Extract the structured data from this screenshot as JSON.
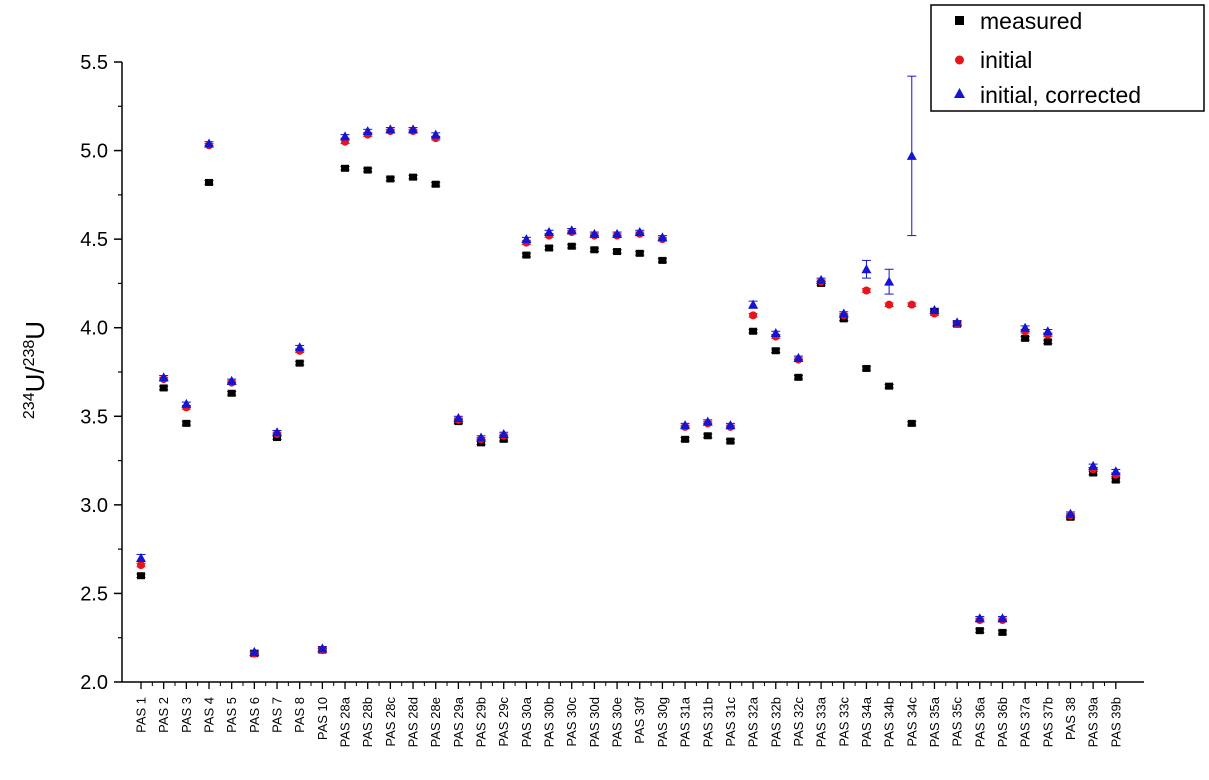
{
  "chart_data": {
    "type": "scatter",
    "ylabel": {
      "sup1": "234",
      "base1": "U/",
      "sup2": "238",
      "base2": "U"
    },
    "ylim": [
      2.0,
      5.5
    ],
    "yticks": [
      "2.0",
      "2.5",
      "3.0",
      "3.5",
      "4.0",
      "4.5",
      "5.0",
      "5.5"
    ],
    "legend_position": "top-right",
    "categories": [
      "PAS 1",
      "PAS 2",
      "PAS 3",
      "PAS 4",
      "PAS 5",
      "PAS 6",
      "PAS 7",
      "PAS 8",
      "PAS 10",
      "PAS 28a",
      "PAS 28b",
      "PAS 28c",
      "PAS 28d",
      "PAS 28e",
      "PAS 29a",
      "PAS 29b",
      "PAS 29c",
      "PAS 30a",
      "PAS 30b",
      "PAS 30c",
      "PAS 30d",
      "PAS 30e",
      "PAS 30f",
      "PAS 30g",
      "PAS 31a",
      "PAS 31b",
      "PAS 31c",
      "PAS 32a",
      "PAS 32b",
      "PAS 32c",
      "PAS 33a",
      "PAS 33c",
      "PAS 34a",
      "PAS 34b",
      "PAS 34c",
      "PAS 35a",
      "PAS 35c",
      "PAS 36a",
      "PAS 36b",
      "PAS 37a",
      "PAS 37b",
      "PAS 38",
      "PAS 39a",
      "PAS 39b"
    ],
    "series": [
      {
        "name": "measured",
        "marker": "square",
        "color": "#000000",
        "values": [
          2.6,
          3.66,
          3.46,
          4.82,
          3.63,
          2.16,
          3.38,
          3.8,
          2.18,
          4.9,
          4.89,
          4.84,
          4.85,
          4.81,
          3.47,
          3.35,
          3.37,
          4.41,
          4.45,
          4.46,
          4.44,
          4.43,
          4.42,
          4.38,
          3.37,
          3.39,
          3.36,
          3.98,
          3.87,
          3.72,
          4.25,
          4.05,
          3.77,
          3.67,
          3.46,
          4.09,
          4.02,
          2.29,
          2.28,
          3.94,
          3.92,
          2.93,
          3.18,
          3.14
        ],
        "errors": [
          0.01,
          0.01,
          0.01,
          0.01,
          0.01,
          0.01,
          0.01,
          0.01,
          0.01,
          0.01,
          0.01,
          0.01,
          0.01,
          0.01,
          0.01,
          0.01,
          0.01,
          0.01,
          0.01,
          0.01,
          0.01,
          0.01,
          0.01,
          0.01,
          0.01,
          0.01,
          0.01,
          0.01,
          0.01,
          0.01,
          0.01,
          0.01,
          0.01,
          0.01,
          0.01,
          0.01,
          0.01,
          0.01,
          0.01,
          0.01,
          0.01,
          0.01,
          0.01,
          0.01
        ]
      },
      {
        "name": "initial",
        "marker": "circle",
        "color": "#e8141c",
        "values": [
          2.66,
          3.71,
          3.55,
          5.03,
          3.69,
          2.16,
          3.4,
          3.87,
          2.18,
          5.05,
          5.09,
          5.11,
          5.11,
          5.07,
          3.48,
          3.37,
          3.39,
          4.48,
          4.52,
          4.54,
          4.52,
          4.52,
          4.53,
          4.5,
          3.44,
          3.46,
          3.44,
          4.07,
          3.95,
          3.82,
          4.26,
          4.07,
          4.21,
          4.13,
          4.13,
          4.08,
          4.02,
          2.35,
          2.35,
          3.98,
          3.96,
          2.94,
          3.2,
          3.17
        ],
        "errors": [
          0.01,
          0.01,
          0.01,
          0.01,
          0.01,
          0.01,
          0.01,
          0.01,
          0.01,
          0.01,
          0.01,
          0.01,
          0.01,
          0.01,
          0.01,
          0.01,
          0.01,
          0.01,
          0.01,
          0.01,
          0.01,
          0.01,
          0.01,
          0.01,
          0.01,
          0.01,
          0.01,
          0.01,
          0.01,
          0.01,
          0.01,
          0.01,
          0.01,
          0.01,
          0.01,
          0.01,
          0.01,
          0.01,
          0.01,
          0.01,
          0.01,
          0.01,
          0.01,
          0.01
        ]
      },
      {
        "name": "initial, corrected",
        "marker": "triangle",
        "color": "#1414d2",
        "values": [
          2.7,
          3.72,
          3.57,
          5.04,
          3.7,
          2.17,
          3.41,
          3.89,
          2.19,
          5.08,
          5.11,
          5.12,
          5.12,
          5.09,
          3.49,
          3.38,
          3.4,
          4.5,
          4.54,
          4.55,
          4.53,
          4.53,
          4.54,
          4.51,
          3.45,
          3.47,
          3.45,
          4.13,
          3.97,
          3.83,
          4.27,
          4.08,
          4.33,
          4.26,
          4.97,
          4.1,
          4.03,
          2.36,
          2.36,
          4.0,
          3.98,
          2.95,
          3.22,
          3.19
        ],
        "errors": [
          0.02,
          0.01,
          0.01,
          0.01,
          0.01,
          0.01,
          0.01,
          0.01,
          0.01,
          0.01,
          0.01,
          0.01,
          0.01,
          0.01,
          0.01,
          0.01,
          0.01,
          0.01,
          0.01,
          0.01,
          0.01,
          0.01,
          0.01,
          0.01,
          0.01,
          0.01,
          0.01,
          0.02,
          0.01,
          0.01,
          0.01,
          0.01,
          0.05,
          0.07,
          0.45,
          0.01,
          0.01,
          0.01,
          0.01,
          0.01,
          0.01,
          0.01,
          0.01,
          0.01
        ]
      }
    ]
  }
}
